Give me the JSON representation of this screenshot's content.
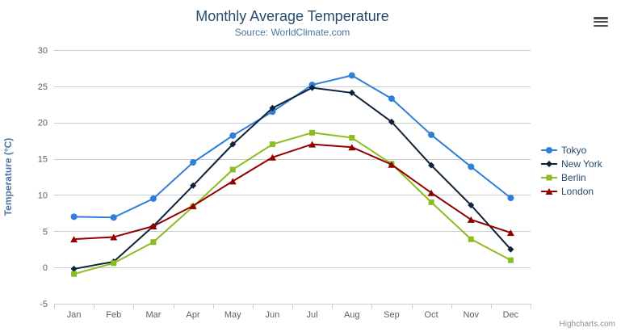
{
  "header": {
    "title": "Monthly Average Temperature",
    "subtitle": "Source: WorldClimate.com",
    "menu_icon": "hamburger-menu-icon"
  },
  "credits": {
    "label": "Highcharts.com"
  },
  "ui_colors": {
    "title": "#274b6d",
    "subtitle": "#4d759e",
    "axis_label": "#606060",
    "axis_title": "#4d759e",
    "grid_line": "#cccccc",
    "axis_line": "#c0d0e0",
    "legend_text": "#274b6d",
    "credits_text": "#8f8f8f",
    "background": "#ffffff"
  },
  "chart_data": {
    "type": "line",
    "title": "Monthly Average Temperature",
    "subtitle": "Source: WorldClimate.com",
    "xlabel": "",
    "ylabel": "Temperature (°C)",
    "ylim": [
      -5,
      30
    ],
    "ytick_interval": 5,
    "yticks": [
      -5,
      0,
      5,
      10,
      15,
      20,
      25,
      30
    ],
    "grid": "horizontal",
    "legend_position": "right",
    "categories": [
      "Jan",
      "Feb",
      "Mar",
      "Apr",
      "May",
      "Jun",
      "Jul",
      "Aug",
      "Sep",
      "Oct",
      "Nov",
      "Dec"
    ],
    "series": [
      {
        "name": "Tokyo",
        "color": "#2f7ed8",
        "marker": "circle",
        "values": [
          7.0,
          6.9,
          9.5,
          14.5,
          18.2,
          21.5,
          25.2,
          26.5,
          23.3,
          18.3,
          13.9,
          9.6
        ]
      },
      {
        "name": "New York",
        "color": "#0d233a",
        "marker": "diamond",
        "values": [
          -0.2,
          0.8,
          5.7,
          11.3,
          17.0,
          22.0,
          24.8,
          24.1,
          20.1,
          14.1,
          8.6,
          2.5
        ]
      },
      {
        "name": "Berlin",
        "color": "#8bbc21",
        "marker": "square",
        "values": [
          -0.9,
          0.6,
          3.5,
          8.4,
          13.5,
          17.0,
          18.6,
          17.9,
          14.3,
          9.0,
          3.9,
          1.0
        ]
      },
      {
        "name": "London",
        "color": "#910000",
        "marker": "triangle",
        "values": [
          3.9,
          4.2,
          5.7,
          8.5,
          11.9,
          15.2,
          17.0,
          16.6,
          14.2,
          10.3,
          6.6,
          4.8
        ]
      }
    ]
  }
}
